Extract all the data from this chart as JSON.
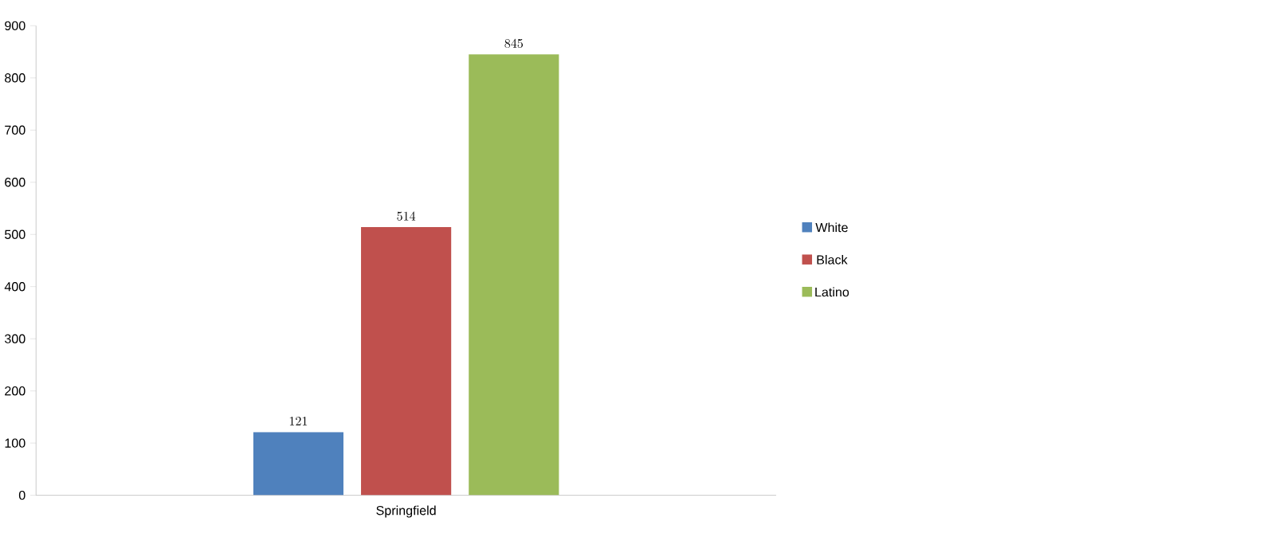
{
  "chart_data": {
    "type": "bar",
    "categories": [
      "Springfield"
    ],
    "series": [
      {
        "name": "White",
        "color": "#4f81bd",
        "values": [
          121
        ]
      },
      {
        "name": "Black",
        "color": "#c0504d",
        "values": [
          514
        ]
      },
      {
        "name": "Latino",
        "color": "#9bbb59",
        "values": [
          845
        ]
      }
    ],
    "ylim": [
      0,
      900
    ],
    "yticks": [
      0,
      100,
      200,
      300,
      400,
      500,
      600,
      700,
      800,
      900
    ],
    "data_labels": true,
    "legend": "right",
    "grid": false
  }
}
